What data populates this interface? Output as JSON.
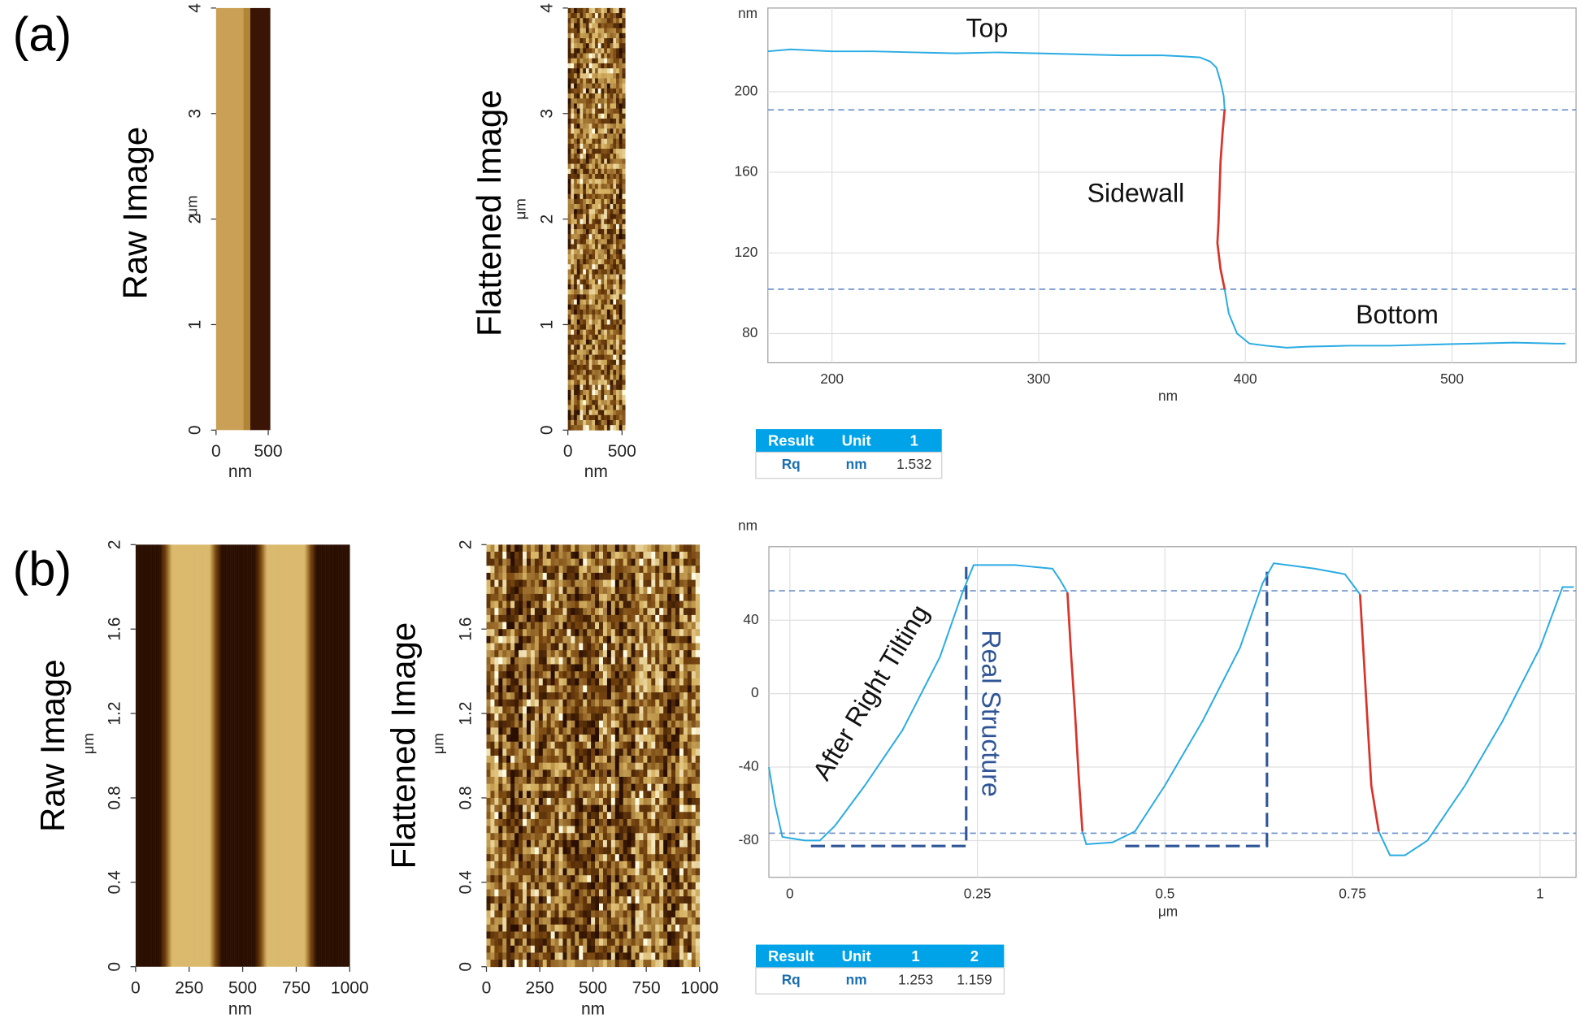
{
  "panels": [
    "(a)",
    "(b)"
  ],
  "chart_data": [
    {
      "type": "image",
      "title": "Raw Image",
      "xlabel": "nm",
      "ylabel": "μm",
      "xlim": [
        0,
        520
      ],
      "ylim": [
        0,
        4
      ],
      "xticks": [
        0,
        500
      ],
      "yticks": [
        0,
        1,
        2,
        3,
        4
      ]
    },
    {
      "type": "image",
      "title": "Flattened Image",
      "xlabel": "nm",
      "ylabel": "μm",
      "xlim": [
        0,
        520
      ],
      "ylim": [
        0,
        4
      ],
      "xticks": [
        0,
        500
      ],
      "yticks": [
        0,
        1,
        2,
        3,
        4
      ]
    },
    {
      "type": "line",
      "xlabel": "nm",
      "ylabel": "nm",
      "xlim": [
        169,
        560
      ],
      "ylim": [
        65.5,
        241.5
      ],
      "xticks": [
        200,
        300,
        400,
        500
      ],
      "yticks": [
        80,
        120,
        160,
        200
      ],
      "grid": true,
      "reference_lines": [
        191,
        102
      ],
      "series": [
        {
          "color": "#29abe2",
          "x": [
            169,
            180,
            200,
            220,
            240,
            260,
            280,
            300,
            320,
            340,
            360,
            370,
            378,
            383,
            386,
            388,
            389.5,
            390,
            389,
            388,
            387.5,
            387,
            386.5,
            388,
            390,
            392,
            396,
            402,
            410,
            420,
            430,
            450,
            470,
            490,
            510,
            530,
            550,
            555
          ],
          "values": [
            220,
            221,
            220,
            220,
            219.5,
            219,
            219.5,
            219,
            218.5,
            218,
            218,
            217.5,
            217,
            215,
            212,
            205,
            198,
            191,
            180,
            165,
            150,
            135,
            125,
            112,
            102,
            90,
            80,
            75,
            74,
            73,
            73.5,
            74,
            74,
            74.5,
            75,
            75.5,
            75,
            75
          ]
        },
        {
          "color": "#d9342b",
          "x": [
            390,
            389,
            388,
            387.5,
            387,
            386.5,
            388,
            390
          ],
          "values": [
            191,
            180,
            165,
            150,
            135,
            125,
            112,
            102
          ]
        }
      ],
      "annotations": [
        "Top",
        "Sidewall",
        "Bottom"
      ]
    },
    {
      "type": "image",
      "title": "Raw Image",
      "xlabel": "nm",
      "ylabel": "μm",
      "xlim": [
        0,
        1000
      ],
      "ylim": [
        0,
        2
      ],
      "xticks": [
        0,
        250,
        500,
        750,
        1000
      ],
      "yticks": [
        0,
        0.4,
        0.8,
        1.2,
        1.6,
        2
      ]
    },
    {
      "type": "image",
      "title": "Flattened Image",
      "xlabel": "nm",
      "ylabel": "μm",
      "xlim": [
        0,
        1000
      ],
      "ylim": [
        0,
        2
      ],
      "xticks": [
        0,
        250,
        500,
        750,
        1000
      ],
      "yticks": [
        0,
        0.4,
        0.8,
        1.2,
        1.6,
        2
      ]
    },
    {
      "type": "line",
      "xlabel": "μm",
      "ylabel": "nm",
      "xlim": [
        -0.028,
        1.048
      ],
      "ylim": [
        -100,
        80
      ],
      "xticks": [
        0,
        0.25,
        0.5,
        0.75,
        1
      ],
      "yticks": [
        -80,
        -40,
        0,
        40
      ],
      "grid": true,
      "reference_lines": [
        56,
        -76
      ],
      "series": [
        {
          "color": "#29abe2",
          "x": [
            -0.028,
            -0.02,
            -0.01,
            0.02,
            0.04,
            0.06,
            0.1,
            0.15,
            0.2,
            0.23,
            0.245,
            0.3,
            0.35,
            0.36,
            0.37,
            0.375,
            0.38,
            0.385,
            0.39,
            0.395,
            0.43,
            0.46,
            0.5,
            0.55,
            0.6,
            0.63,
            0.645,
            0.7,
            0.74,
            0.76,
            0.765,
            0.77,
            0.775,
            0.785,
            0.8,
            0.82,
            0.85,
            0.9,
            0.95,
            1.0,
            1.03,
            1.045
          ],
          "values": [
            -40,
            -60,
            -78,
            -80,
            -80,
            -72,
            -50,
            -20,
            20,
            55,
            70,
            70,
            68,
            62,
            55,
            20,
            -10,
            -45,
            -75,
            -82,
            -81,
            -75,
            -50,
            -15,
            25,
            60,
            71,
            68,
            65,
            54,
            20,
            -15,
            -50,
            -75,
            -88,
            -88,
            -80,
            -50,
            -15,
            25,
            58,
            58
          ]
        },
        {
          "color": "#d9342b",
          "x": [
            0.37,
            0.375,
            0.38,
            0.385,
            0.39
          ],
          "values": [
            55,
            20,
            -10,
            -45,
            -75
          ]
        },
        {
          "color": "#d9342b",
          "x": [
            0.76,
            0.765,
            0.77,
            0.775,
            0.785
          ],
          "values": [
            54,
            20,
            -15,
            -50,
            -75
          ]
        }
      ],
      "structure_lines": [
        {
          "x": [
            0.028,
            0.235,
            0.235
          ],
          "values": [
            -83,
            -83,
            69
          ]
        },
        {
          "x": [
            0.447,
            0.636,
            0.636
          ],
          "values": [
            -83,
            -83,
            69
          ]
        }
      ],
      "annotations": [
        "After Right Tilting",
        "Real Structure"
      ]
    }
  ],
  "tables": [
    {
      "header": [
        "Result",
        "Unit",
        "1"
      ],
      "rows": [
        [
          "Rq",
          "nm",
          1.532
        ]
      ]
    },
    {
      "header": [
        "Result",
        "Unit",
        "1",
        "2"
      ],
      "rows": [
        [
          "Rq",
          "nm",
          1.253,
          1.159
        ]
      ]
    }
  ]
}
